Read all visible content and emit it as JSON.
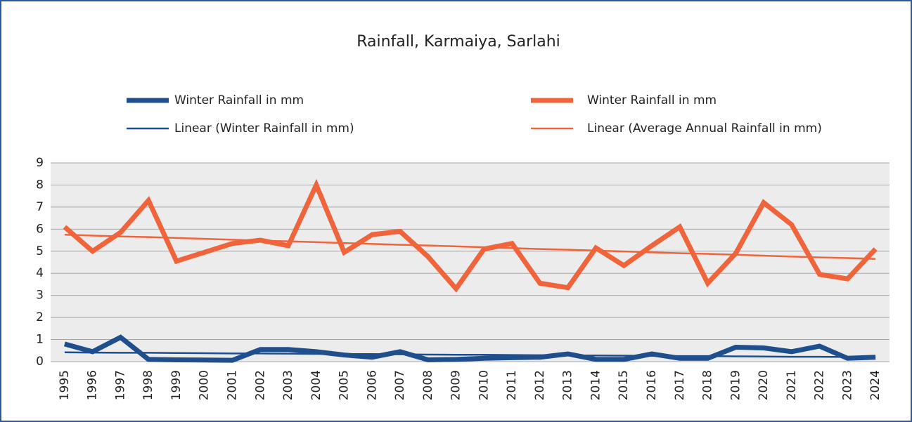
{
  "chart_data": {
    "type": "line",
    "title": "Rainfall, Karmaiya, Sarlahi",
    "categories": [
      "1995",
      "1996",
      "1997",
      "1998",
      "1999",
      "2000",
      "2001",
      "2002",
      "2003",
      "2004",
      "2005",
      "2006",
      "2007",
      "2008",
      "2009",
      "2010",
      "2011",
      "2012",
      "2013",
      "2014",
      "2015",
      "2016",
      "2017",
      "2018",
      "2019",
      "2020",
      "2021",
      "2022",
      "2023",
      "2024"
    ],
    "series": [
      {
        "name": "Winter Rainfall in mm",
        "color": "#1f4e8c",
        "width": 7,
        "values": [
          0.8,
          0.45,
          1.1,
          0.1,
          0.08,
          0.07,
          0.06,
          0.55,
          0.55,
          0.45,
          0.3,
          0.2,
          0.45,
          0.08,
          0.1,
          0.15,
          0.18,
          0.2,
          0.35,
          0.1,
          0.1,
          0.35,
          0.15,
          0.15,
          0.65,
          0.62,
          0.45,
          0.7,
          0.15,
          0.2
        ]
      },
      {
        "name": "Winter Rainfall in mm",
        "color": "#f0643c",
        "width": 7,
        "values": [
          6.1,
          5.0,
          5.85,
          7.3,
          4.55,
          4.95,
          5.35,
          5.5,
          5.25,
          8.0,
          4.95,
          5.75,
          5.9,
          4.75,
          3.3,
          5.1,
          5.35,
          3.55,
          3.35,
          5.15,
          4.35,
          5.25,
          6.1,
          3.55,
          4.9,
          7.2,
          6.2,
          3.95,
          3.75,
          5.1
        ]
      },
      {
        "name": "Linear (Winter Rainfall in mm)",
        "color": "#1f4e8c",
        "width": 2.5,
        "values": [
          0.42,
          0.41,
          0.4,
          0.4,
          0.39,
          0.38,
          0.37,
          0.37,
          0.36,
          0.35,
          0.34,
          0.34,
          0.33,
          0.32,
          0.31,
          0.31,
          0.3,
          0.29,
          0.28,
          0.28,
          0.27,
          0.26,
          0.25,
          0.25,
          0.24,
          0.23,
          0.22,
          0.22,
          0.21,
          0.2
        ]
      },
      {
        "name": "Linear (Average Annual Rainfall in mm)",
        "color": "#f0643c",
        "width": 2.5,
        "values": [
          5.75,
          5.71,
          5.67,
          5.64,
          5.6,
          5.56,
          5.52,
          5.48,
          5.45,
          5.41,
          5.37,
          5.33,
          5.29,
          5.26,
          5.22,
          5.18,
          5.14,
          5.1,
          5.07,
          5.03,
          4.99,
          4.95,
          4.91,
          4.88,
          4.84,
          4.8,
          4.76,
          4.72,
          4.69,
          4.65
        ]
      }
    ],
    "ylim": [
      0,
      9
    ],
    "yticks": [
      0,
      1,
      2,
      3,
      4,
      5,
      6,
      7,
      8,
      9
    ],
    "grid": true
  }
}
